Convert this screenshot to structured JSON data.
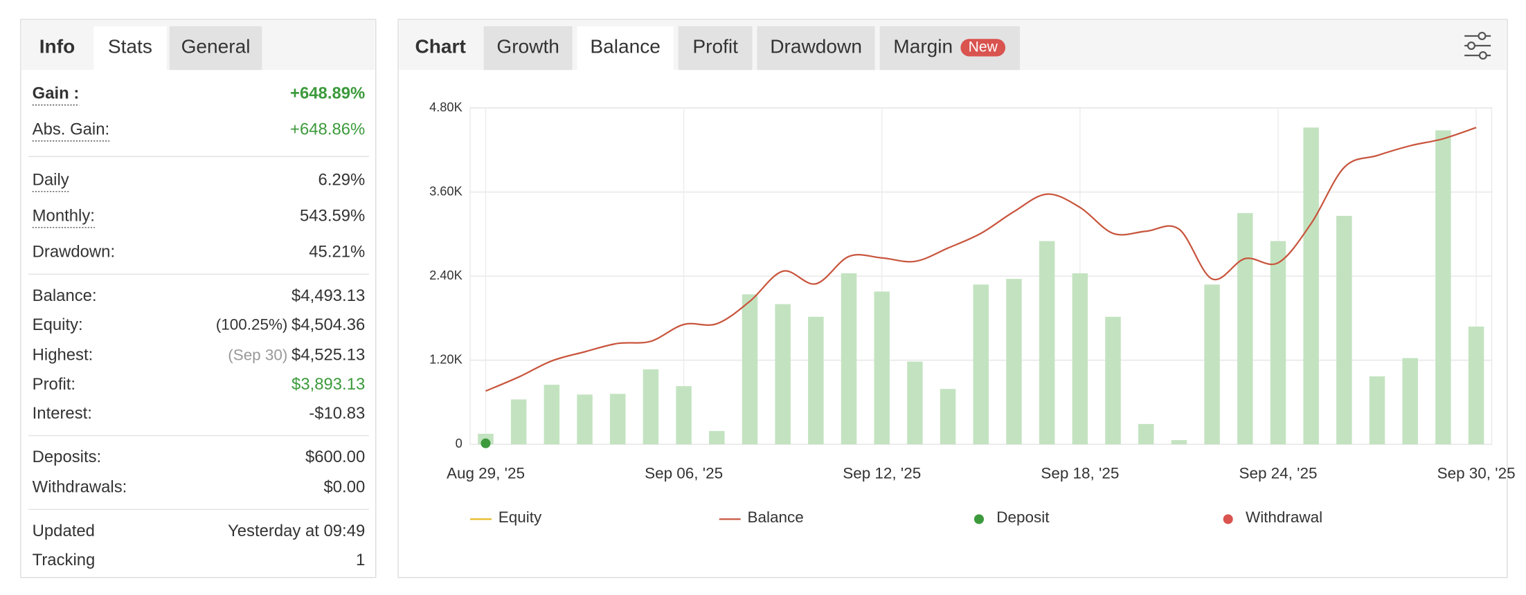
{
  "left_panel": {
    "tabs": [
      "Info",
      "Stats",
      "General"
    ],
    "bold_tab": 0,
    "active_tab": 1,
    "sections": [
      [
        {
          "label": "Gain :",
          "value": "+648.89%",
          "bold": true,
          "dotted": true,
          "color": "#3c9a3c"
        },
        {
          "label": "Abs. Gain:",
          "value": "+648.86%",
          "dotted": true,
          "color": "#3c9a3c"
        }
      ],
      [
        {
          "label": "Daily",
          "value": "6.29%",
          "dotted": true
        },
        {
          "label": "Monthly:",
          "value": "543.59%",
          "dotted": true
        },
        {
          "label": "Drawdown:",
          "value": "45.21%"
        }
      ],
      [
        {
          "label": "Balance:",
          "value": "$4,493.13"
        },
        {
          "label": "Equity:",
          "value": "$4,504.36",
          "prefix": "(100.25%)",
          "prefix_color": "#333"
        },
        {
          "label": "Highest:",
          "value": "$4,525.13",
          "prefix": "(Sep 30)",
          "prefix_color": "#999"
        },
        {
          "label": "Profit:",
          "value": "$3,893.13",
          "color": "#3c9a3c"
        },
        {
          "label": "Interest:",
          "value": "-$10.83"
        }
      ],
      [
        {
          "label": "Deposits:",
          "value": "$600.00"
        },
        {
          "label": "Withdrawals:",
          "value": "$0.00"
        }
      ],
      [
        {
          "label": "Updated",
          "value": "Yesterday at 09:49"
        },
        {
          "label": "Tracking",
          "value": "1"
        }
      ]
    ]
  },
  "chart_panel": {
    "tabs": [
      "Chart",
      "Growth",
      "Balance",
      "Profit",
      "Drawdown",
      "Margin"
    ],
    "bold_tab": 0,
    "active_tab": 2,
    "badge": {
      "tab": 5,
      "text": "New",
      "color": "#d9534f"
    },
    "chart_data": {
      "type": "bar_line",
      "categories": [
        "Aug 29, '25",
        null,
        null,
        null,
        null,
        null,
        "Sep 06, '25",
        null,
        null,
        null,
        null,
        null,
        "Sep 12, '25",
        null,
        null,
        null,
        null,
        null,
        "Sep 18, '25",
        null,
        null,
        null,
        null,
        null,
        "Sep 24, '25",
        null,
        null,
        null,
        null,
        null,
        "Sep 30, '25"
      ],
      "bars": {
        "color": "#c3e3c0",
        "values": [
          150,
          640,
          850,
          710,
          720,
          1070,
          830,
          190,
          2140,
          2000,
          1820,
          2440,
          2180,
          1180,
          790,
          2280,
          2360,
          2900,
          2440,
          1820,
          290,
          60,
          2280,
          3300,
          2900,
          4520,
          3260,
          970,
          1230,
          4480,
          1680
        ]
      },
      "balance": {
        "color": "#c8553d",
        "values": [
          760,
          960,
          1190,
          1320,
          1440,
          1470,
          1710,
          1720,
          2040,
          2470,
          2290,
          2680,
          2660,
          2610,
          2800,
          3010,
          3320,
          3570,
          3380,
          3010,
          3040,
          3070,
          2360,
          2650,
          2590,
          3150,
          3950,
          4120,
          4260,
          4360,
          4520
        ]
      },
      "deposit": {
        "color": "#3c9a3c",
        "values": [
          0,
          null,
          null,
          null,
          null,
          null,
          null,
          null,
          null,
          null,
          null,
          null,
          null,
          null,
          null,
          null,
          null,
          null,
          null,
          null,
          null,
          null,
          null,
          null,
          null,
          null,
          null,
          null,
          null,
          null,
          null
        ]
      },
      "legend": [
        {
          "name": "Equity",
          "color": "#e8b923",
          "marker": "line"
        },
        {
          "name": "Balance",
          "color": "#c8553d",
          "marker": "line"
        },
        {
          "name": "Deposit",
          "color": "#3c9a3c",
          "marker": "dot"
        },
        {
          "name": "Withdrawal",
          "color": "#d9534f",
          "marker": "dot"
        }
      ],
      "ylim": [
        0,
        4800
      ],
      "yticks": [
        0,
        {
          "value": 1200,
          "label": "1.20K"
        },
        {
          "value": 2400,
          "label": "2.40K"
        },
        {
          "value": 3600,
          "label": "3.60K"
        },
        {
          "value": 4800,
          "label": "4.80K"
        }
      ],
      "grid": true
    }
  }
}
